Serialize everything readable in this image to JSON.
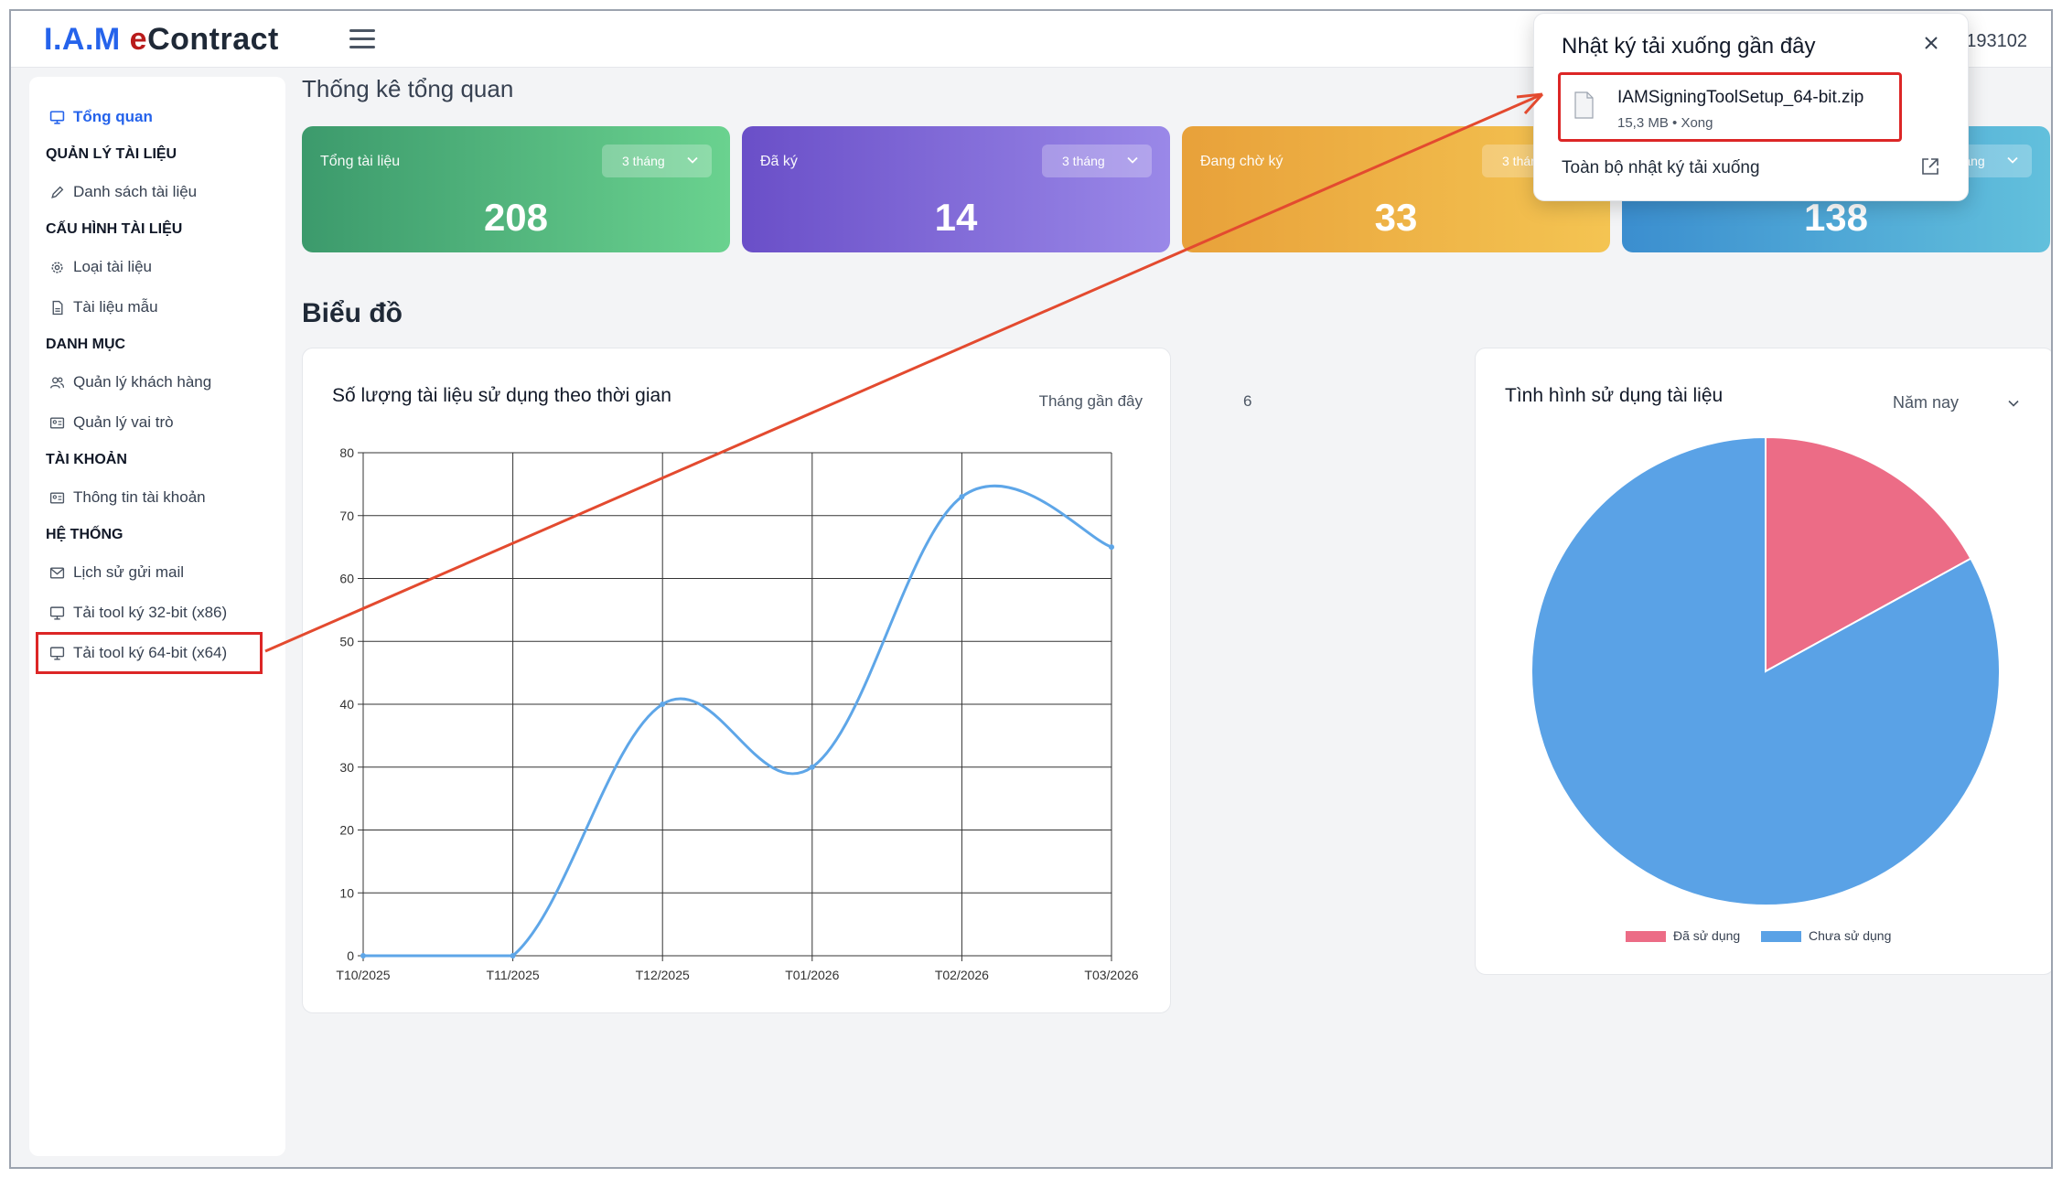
{
  "app": {
    "logo_part1": "I.A.M",
    "logo_part2": "e",
    "logo_part3": "Contract",
    "user_id": "9193102"
  },
  "sidebar": {
    "overview": "Tổng quan",
    "sections": [
      {
        "heading": "QUẢN LÝ TÀI LIỆU",
        "items": [
          "Danh sách tài liệu"
        ]
      },
      {
        "heading": "CẤU HÌNH TÀI LIỆU",
        "items": [
          "Loại tài liệu",
          "Tài liệu mẫu"
        ]
      },
      {
        "heading": "DANH MỤC",
        "items": [
          "Quản lý khách hàng",
          "Quản lý vai trò"
        ]
      },
      {
        "heading": "TÀI KHOẢN",
        "items": [
          "Thông tin tài khoản"
        ]
      },
      {
        "heading": "HỆ THỐNG",
        "items": [
          "Lịch sử gửi mail",
          "Tải tool ký 32-bit (x86)",
          "Tải tool ký 64-bit (x64)"
        ]
      }
    ]
  },
  "overview": {
    "title": "Thống kê tổng quan",
    "cards": [
      {
        "label": "Tổng tài liệu",
        "value": "208",
        "period": "3 tháng"
      },
      {
        "label": "Đã ký",
        "value": "14",
        "period": "3 tháng"
      },
      {
        "label": "Đang chờ ký",
        "value": "33",
        "period": "3 tháng"
      },
      {
        "label": "",
        "value": "138",
        "period": "3 tháng"
      }
    ]
  },
  "charts_section": {
    "title": "Biểu đồ"
  },
  "line_panel": {
    "title": "Số lượng tài liệu sử dụng theo thời gian",
    "range_value": "6",
    "range_label": "Tháng gần đây"
  },
  "pie_panel": {
    "title": "Tình hình sử dụng tài liệu",
    "period": "Năm nay"
  },
  "download_popup": {
    "title": "Nhật ký tải xuống gần đây",
    "file_name": "IAMSigningToolSetup_64-bit.zip",
    "file_meta": "15,3 MB • Xong",
    "all_downloads": "Toàn bộ nhật ký tải xuống"
  },
  "colors": {
    "accent": "#2563eb",
    "annotation_red": "#dc2626",
    "line_series": "#5ea6e8",
    "pie_used": "#ec6c86",
    "pie_unused": "#5aa2e6"
  },
  "chart_data": [
    {
      "type": "line",
      "title": "Số lượng tài liệu sử dụng theo thời gian",
      "categories": [
        "T10/2025",
        "T11/2025",
        "T12/2025",
        "T01/2026",
        "T02/2026",
        "T03/2026"
      ],
      "values": [
        0,
        0,
        40,
        30,
        73,
        65
      ],
      "ylim": [
        0,
        80
      ],
      "yticks": [
        0,
        10,
        20,
        30,
        40,
        50,
        60,
        70,
        80
      ],
      "grid": true
    },
    {
      "type": "pie",
      "title": "Tình hình sử dụng tài liệu",
      "labels": [
        "Đã sử dụng",
        "Chưa sử dụng"
      ],
      "values": [
        17,
        83
      ],
      "legend": "bottom"
    }
  ]
}
